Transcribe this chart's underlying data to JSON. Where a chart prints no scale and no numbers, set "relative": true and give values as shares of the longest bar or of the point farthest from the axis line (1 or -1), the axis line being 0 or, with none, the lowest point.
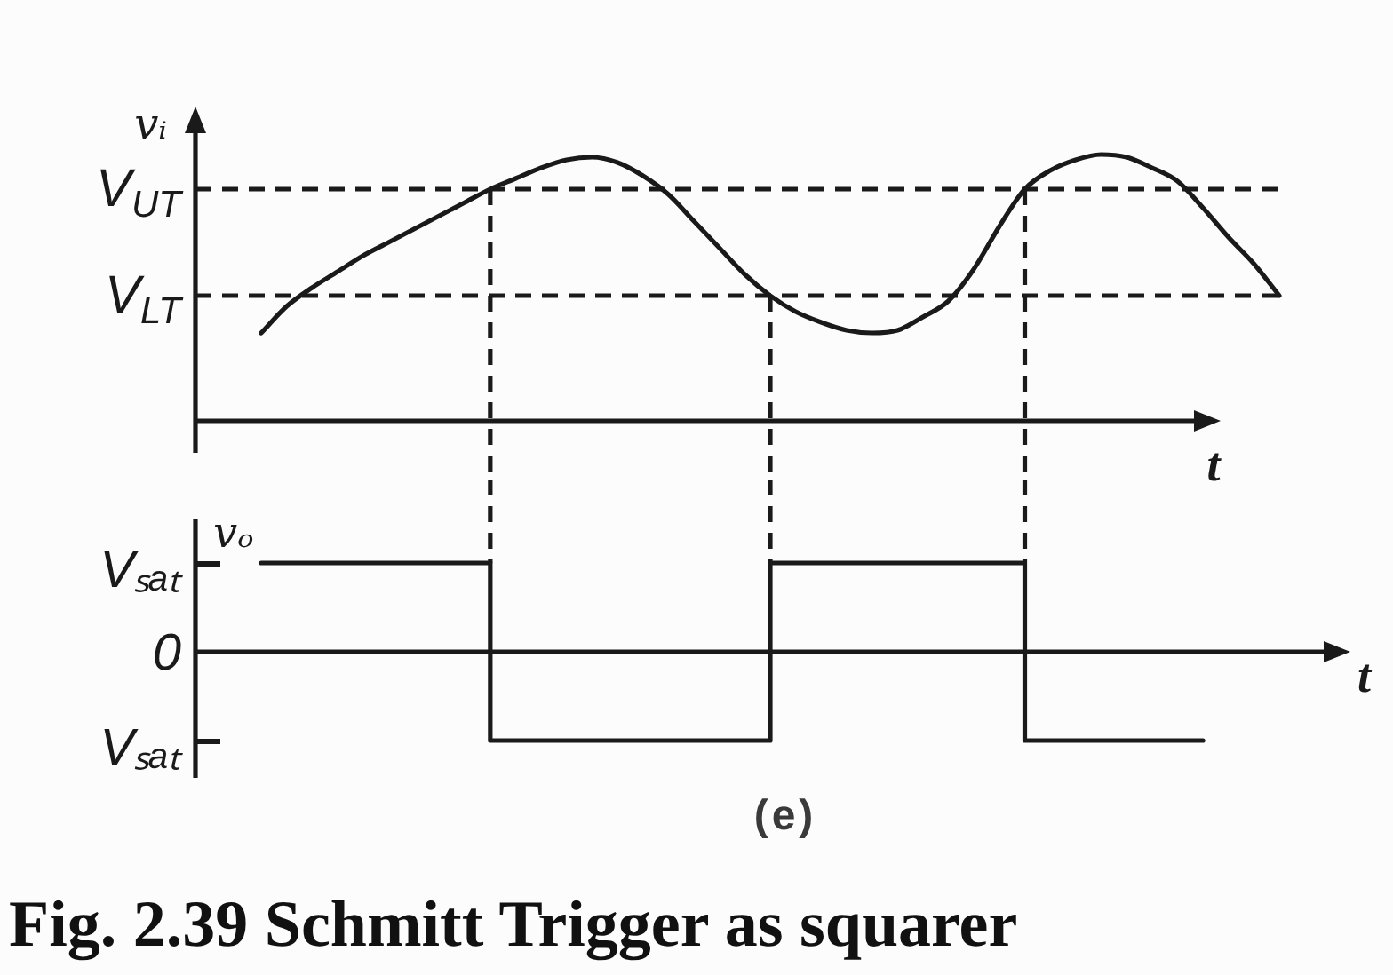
{
  "chart_data": [
    {
      "type": "line",
      "relative": true,
      "ylabel": "vᵢ",
      "xlabel": "t",
      "categories": [
        null,
        null,
        null,
        null,
        null,
        null,
        null,
        null,
        null,
        null,
        null,
        null,
        null,
        null,
        null,
        null,
        null,
        null,
        null,
        null,
        null,
        null,
        null,
        null,
        null,
        null,
        null,
        null,
        null,
        null,
        null,
        null,
        null,
        null,
        null,
        null,
        null,
        null,
        null,
        null,
        null
      ],
      "series": [
        {
          "color": "#1a1a1a",
          "values": [
            0.33,
            0.43,
            0.5,
            0.56,
            0.62,
            0.67,
            0.72,
            0.77,
            0.82,
            0.87,
            0.91,
            0.95,
            0.98,
            0.99,
            0.97,
            0.92,
            0.85,
            0.75,
            0.65,
            0.55,
            0.47,
            0.41,
            0.37,
            0.34,
            0.33,
            0.34,
            0.39,
            0.45,
            0.57,
            0.73,
            0.87,
            0.94,
            0.98,
            1.0,
            0.99,
            0.95,
            0.9,
            0.8,
            0.69,
            0.59,
            0.47
          ]
        }
      ],
      "ref_lines": [
        {
          "axis": "y",
          "value": 0.87,
          "label": "V$_{UT}$",
          "color": "#1a1a1a",
          "line_style": "dashed"
        },
        {
          "axis": "y",
          "value": 0.47,
          "label": "V$_{LT}$",
          "color": "#1a1a1a",
          "line_style": "dashed"
        }
      ]
    },
    {
      "type": "step",
      "relative": true,
      "ylabel": "vₒ",
      "xlabel": "t",
      "categories": [
        null,
        null,
        null,
        null,
        null,
        null,
        null,
        null,
        null,
        null,
        null,
        null,
        null,
        null,
        null,
        null,
        null,
        null,
        null,
        null,
        null,
        null,
        null,
        null,
        null,
        null,
        null,
        null,
        null,
        null,
        null,
        null,
        null,
        null,
        null,
        null,
        null,
        null,
        null,
        null,
        null
      ],
      "series": [
        {
          "color": "#1a1a1a",
          "values": [
            1,
            1,
            1,
            1,
            1,
            1,
            1,
            1,
            1,
            -1,
            -1,
            -1,
            -1,
            -1,
            -1,
            -1,
            -1,
            -1,
            -1,
            -1,
            1,
            1,
            1,
            1,
            1,
            1,
            1,
            1,
            1,
            1,
            -1,
            -1,
            -1,
            -1,
            -1,
            -1,
            -1,
            -1,
            null,
            null,
            null
          ]
        }
      ],
      "annotations": [
        "Vₛₐₜ",
        "0",
        "Vₛₐₜ",
        "(e)",
        "Fig. 2.39 Schmitt Trigger as squarer"
      ]
    }
  ]
}
